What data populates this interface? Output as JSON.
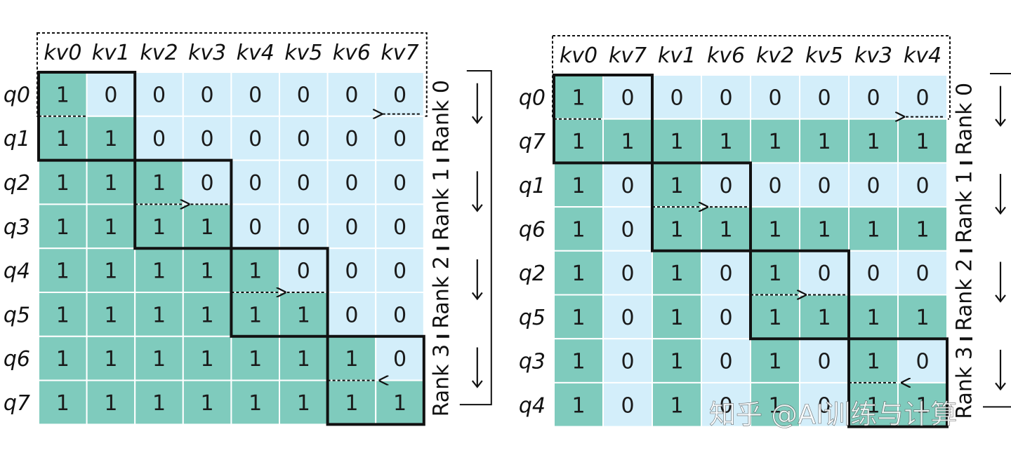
{
  "colors": {
    "on": "#7fcbbd",
    "off": "#d3eefa",
    "grid": "#ffffff",
    "ink": "#111111"
  },
  "panels": [
    {
      "id": "left",
      "col_labels": [
        "kv0",
        "kv1",
        "kv2",
        "kv3",
        "kv4",
        "kv5",
        "kv6",
        "kv7"
      ],
      "row_labels": [
        "q0",
        "q1",
        "q2",
        "q3",
        "q4",
        "q5",
        "q6",
        "q7"
      ],
      "matrix": [
        [
          1,
          0,
          0,
          0,
          0,
          0,
          0,
          0
        ],
        [
          1,
          1,
          0,
          0,
          0,
          0,
          0,
          0
        ],
        [
          1,
          1,
          1,
          0,
          0,
          0,
          0,
          0
        ],
        [
          1,
          1,
          1,
          1,
          0,
          0,
          0,
          0
        ],
        [
          1,
          1,
          1,
          1,
          1,
          0,
          0,
          0
        ],
        [
          1,
          1,
          1,
          1,
          1,
          1,
          0,
          0
        ],
        [
          1,
          1,
          1,
          1,
          1,
          1,
          1,
          0
        ],
        [
          1,
          1,
          1,
          1,
          1,
          1,
          1,
          1
        ]
      ],
      "ranks": [
        "Rank 0",
        "Rank 1",
        "Rank 2",
        "Rank 3"
      ]
    },
    {
      "id": "right",
      "col_labels": [
        "kv0",
        "kv7",
        "kv1",
        "kv6",
        "kv2",
        "kv5",
        "kv3",
        "kv4"
      ],
      "row_labels": [
        "q0",
        "q7",
        "q1",
        "q6",
        "q2",
        "q5",
        "q3",
        "q4"
      ],
      "matrix": [
        [
          1,
          0,
          0,
          0,
          0,
          0,
          0,
          0
        ],
        [
          1,
          1,
          1,
          1,
          1,
          1,
          1,
          1
        ],
        [
          1,
          0,
          1,
          0,
          0,
          0,
          0,
          0
        ],
        [
          1,
          0,
          1,
          1,
          1,
          1,
          1,
          1
        ],
        [
          1,
          0,
          1,
          0,
          1,
          0,
          0,
          0
        ],
        [
          1,
          0,
          1,
          0,
          1,
          1,
          1,
          1
        ],
        [
          1,
          0,
          1,
          0,
          1,
          0,
          1,
          0
        ],
        [
          1,
          0,
          1,
          0,
          1,
          0,
          1,
          1
        ]
      ],
      "ranks": [
        "Rank 0",
        "Rank 1",
        "Rank 2",
        "Rank 3"
      ]
    }
  ],
  "watermark": "知乎 @AI训练与计算"
}
